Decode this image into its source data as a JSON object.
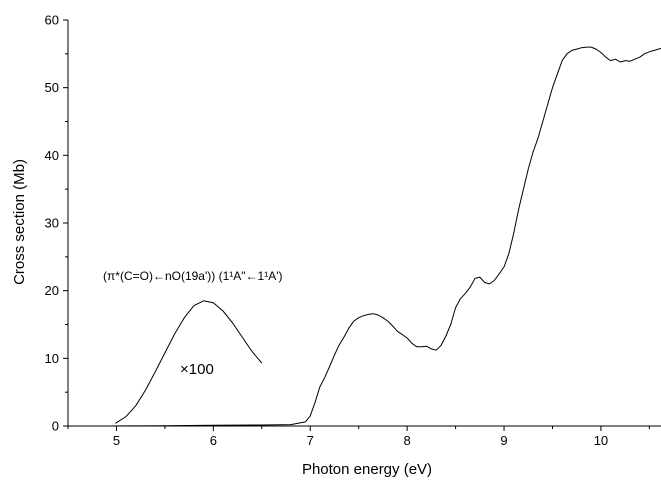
{
  "chart_data": {
    "type": "line",
    "title": "",
    "xlabel": "Photon energy (eV)",
    "ylabel": "Cross section (Mb)",
    "xlim": [
      4.5,
      10.62
    ],
    "ylim": [
      0,
      60
    ],
    "xticks": [
      5,
      6,
      7,
      8,
      9,
      10
    ],
    "yticks": [
      0,
      10,
      20,
      30,
      40,
      50,
      60
    ],
    "grid": false,
    "legend": "none",
    "series": [
      {
        "color": "#000000",
        "x": [
          4.9,
          5.5,
          6.0,
          6.5,
          6.8,
          6.95,
          7.0,
          7.05,
          7.1,
          7.15,
          7.2,
          7.25,
          7.3,
          7.35,
          7.4,
          7.45,
          7.5,
          7.55,
          7.6,
          7.65,
          7.7,
          7.75,
          7.8,
          7.85,
          7.9,
          7.95,
          8.0,
          8.05,
          8.1,
          8.15,
          8.2,
          8.25,
          8.3,
          8.35,
          8.4,
          8.45,
          8.5,
          8.55,
          8.6,
          8.65,
          8.7,
          8.75,
          8.8,
          8.85,
          8.9,
          8.95,
          9.0,
          9.05,
          9.1,
          9.15,
          9.2,
          9.25,
          9.3,
          9.35,
          9.4,
          9.45,
          9.5,
          9.55,
          9.6,
          9.65,
          9.7,
          9.75,
          9.8,
          9.85,
          9.9,
          9.95,
          10.0,
          10.05,
          10.1,
          10.15,
          10.2,
          10.25,
          10.3,
          10.35,
          10.4,
          10.45,
          10.5,
          10.55,
          10.62
        ],
        "y": [
          0.0,
          0.05,
          0.1,
          0.15,
          0.2,
          0.6,
          1.5,
          3.5,
          5.8,
          7.2,
          8.8,
          10.5,
          12.0,
          13.2,
          14.5,
          15.5,
          16.0,
          16.3,
          16.5,
          16.6,
          16.4,
          16.0,
          15.5,
          14.8,
          14.0,
          13.5,
          13.0,
          12.2,
          11.7,
          11.7,
          11.8,
          11.4,
          11.2,
          11.9,
          13.3,
          15.0,
          17.5,
          18.8,
          19.6,
          20.5,
          21.8,
          22.0,
          21.2,
          21.0,
          21.5,
          22.5,
          23.5,
          25.5,
          28.5,
          32.0,
          35.0,
          38.0,
          40.5,
          42.5,
          45.0,
          47.5,
          50.0,
          52.0,
          54.0,
          55.0,
          55.5,
          55.7,
          55.9,
          56.0,
          56.0,
          55.7,
          55.2,
          54.5,
          54.0,
          54.2,
          53.8,
          54.0,
          53.9,
          54.2,
          54.5,
          55.0,
          55.3,
          55.5,
          55.8
        ]
      },
      {
        "color": "#000000",
        "x": [
          4.99,
          5.1,
          5.2,
          5.3,
          5.4,
          5.5,
          5.6,
          5.7,
          5.8,
          5.9,
          6.0,
          6.1,
          6.2,
          6.3,
          6.4,
          6.5
        ],
        "y": [
          0.4,
          1.4,
          3.0,
          5.3,
          8.0,
          10.8,
          13.6,
          16.0,
          17.8,
          18.5,
          18.2,
          17.0,
          15.2,
          13.1,
          11.0,
          9.3
        ]
      }
    ],
    "annotations": {
      "transition_label": "(π*(C=O)←nO(19a')) (1¹A\"←1¹A')",
      "scale_factor": "×100"
    }
  }
}
